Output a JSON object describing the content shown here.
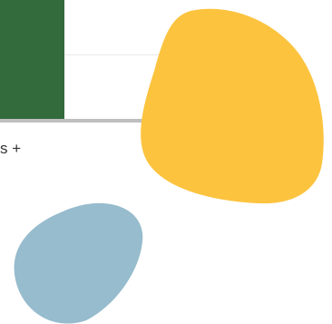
{
  "slide": {
    "partial_text": "s +"
  },
  "colors": {
    "green_block": "#336b3c",
    "yellow_blob": "#fcc33f",
    "blue_blob": "#96bccd",
    "gray_bar": "#bfbfbf",
    "thin_line": "#e8e8e8",
    "text": "#333333"
  }
}
